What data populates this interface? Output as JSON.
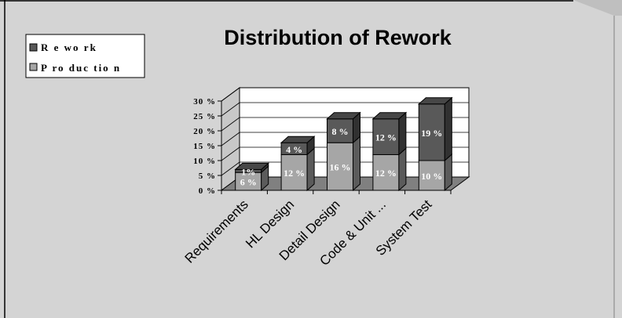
{
  "chart_data": {
    "type": "bar",
    "stacked": true,
    "three_d": true,
    "title": "Distribution of Rework",
    "categories": [
      "Requirements",
      "HL Design",
      "Detail Design",
      "Code & Unit ...",
      "System Test"
    ],
    "series": [
      {
        "name": "Production",
        "values": [
          6,
          12,
          16,
          12,
          10
        ],
        "labels": [
          "6 %",
          "12 %",
          "16 %",
          "12 %",
          "10 %"
        ],
        "color": "#a6a6a6"
      },
      {
        "name": "Rework",
        "values": [
          1,
          4,
          8,
          12,
          19
        ],
        "labels": [
          "1%",
          "4 %",
          "8 %",
          "12 %",
          "19 %"
        ],
        "color": "#595959"
      }
    ],
    "legend": {
      "position": "top-left",
      "entries": [
        "R e wo rk",
        "P ro duc tio n"
      ]
    },
    "y_ticks": [
      "0 %",
      "5 %",
      "10 %",
      "15 %",
      "20 %",
      "25 %",
      "30 %"
    ],
    "ylim": [
      0,
      30
    ],
    "grid": true,
    "background_color": "#d4d4d4",
    "floor_color": "#808080"
  }
}
